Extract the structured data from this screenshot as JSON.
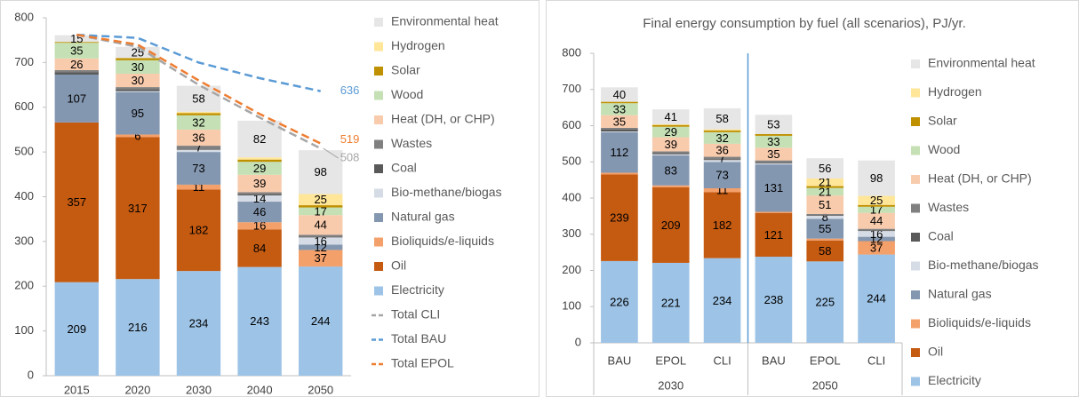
{
  "chart_data": [
    {
      "type": "stacked_bar",
      "categories": [
        "2015",
        "2020",
        "2030",
        "2040",
        "2050"
      ],
      "ylim": [
        0,
        800
      ],
      "yticks": [
        0,
        100,
        200,
        300,
        400,
        500,
        600,
        700,
        800
      ],
      "grid": false,
      "series": [
        {
          "name": "Electricity",
          "color": "#9dc3e6",
          "values": [
            209,
            216,
            234,
            243,
            244
          ]
        },
        {
          "name": "Oil",
          "color": "#c55a11",
          "values": [
            357,
            317,
            182,
            84,
            0
          ]
        },
        {
          "name": "Bioliquids/e-liquids",
          "color": "#f4a06b",
          "values": [
            0,
            6,
            11,
            16,
            37
          ]
        },
        {
          "name": "Natural gas",
          "color": "#8497b0",
          "values": [
            107,
            95,
            73,
            46,
            12
          ]
        },
        {
          "name": "Bio-methane/biogas",
          "color": "#d6dce5",
          "values": [
            0,
            2,
            5,
            14,
            16
          ]
        },
        {
          "name": "Coal",
          "color": "#595959",
          "values": [
            5,
            4,
            2,
            2,
            2
          ]
        },
        {
          "name": "Wastes",
          "color": "#808080",
          "values": [
            5,
            5,
            7,
            5,
            4
          ]
        },
        {
          "name": "Heat (DH, or CHP)",
          "color": "#f8cbad",
          "values": [
            26,
            30,
            36,
            39,
            44
          ]
        },
        {
          "name": "Wood",
          "color": "#c5e0b4",
          "values": [
            35,
            30,
            32,
            29,
            17
          ]
        },
        {
          "name": "Solar",
          "color": "#bf9000",
          "values": [
            2,
            5,
            5,
            5,
            5
          ]
        },
        {
          "name": "Hydrogen",
          "color": "#ffe699",
          "values": [
            0,
            0,
            3,
            5,
            25
          ]
        },
        {
          "name": "Environmental heat",
          "color": "#e7e6e6",
          "values": [
            15,
            25,
            58,
            82,
            98
          ]
        },
        {
          "name": "Total CLI",
          "type": "line",
          "color": "#a6a6a6",
          "values": [
            762,
            735,
            650,
            577,
            508
          ]
        },
        {
          "name": "Total BAU",
          "type": "line",
          "color": "#5b9bd5",
          "values": [
            762,
            755,
            700,
            665,
            636
          ]
        },
        {
          "name": "Total EPOL",
          "type": "line",
          "color": "#ed7d31",
          "values": [
            762,
            740,
            660,
            585,
            519
          ]
        }
      ]
    },
    {
      "type": "stacked_bar",
      "title": "Final energy consumption by fuel (all scenarios), PJ/yr.",
      "groups": [
        {
          "name": "2030",
          "categories": [
            "BAU",
            "EPOL",
            "CLI"
          ]
        },
        {
          "name": "2050",
          "categories": [
            "BAU",
            "EPOL",
            "CLI"
          ]
        }
      ],
      "ylim": [
        0,
        800
      ],
      "yticks": [
        0,
        100,
        200,
        300,
        400,
        500,
        600,
        700,
        800
      ],
      "grid": false,
      "series": [
        {
          "name": "Electricity",
          "color": "#9dc3e6",
          "values": [
            226,
            221,
            234,
            238,
            225,
            244
          ]
        },
        {
          "name": "Oil",
          "color": "#c55a11",
          "values": [
            239,
            209,
            182,
            121,
            58,
            0
          ]
        },
        {
          "name": "Bioliquids/e-liquids",
          "color": "#f4a06b",
          "values": [
            5,
            5,
            11,
            3,
            5,
            37
          ]
        },
        {
          "name": "Natural gas",
          "color": "#8497b0",
          "values": [
            112,
            83,
            73,
            131,
            55,
            12
          ]
        },
        {
          "name": "Bio-methane/biogas",
          "color": "#d6dce5",
          "values": [
            2,
            3,
            5,
            3,
            8,
            16
          ]
        },
        {
          "name": "Coal",
          "color": "#595959",
          "values": [
            5,
            3,
            2,
            3,
            2,
            2
          ]
        },
        {
          "name": "Wastes",
          "color": "#808080",
          "values": [
            5,
            5,
            7,
            5,
            3,
            4
          ]
        },
        {
          "name": "Heat (DH, or CHP)",
          "color": "#f8cbad",
          "values": [
            35,
            39,
            36,
            35,
            51,
            44
          ]
        },
        {
          "name": "Wood",
          "color": "#c5e0b4",
          "values": [
            33,
            29,
            32,
            33,
            21,
            17
          ]
        },
        {
          "name": "Solar",
          "color": "#bf9000",
          "values": [
            4,
            5,
            5,
            5,
            5,
            5
          ]
        },
        {
          "name": "Hydrogen",
          "color": "#ffe699",
          "values": [
            0,
            2,
            3,
            0,
            21,
            25
          ]
        },
        {
          "name": "Environmental heat",
          "color": "#e7e6e6",
          "values": [
            40,
            41,
            58,
            53,
            56,
            98
          ]
        }
      ]
    }
  ]
}
